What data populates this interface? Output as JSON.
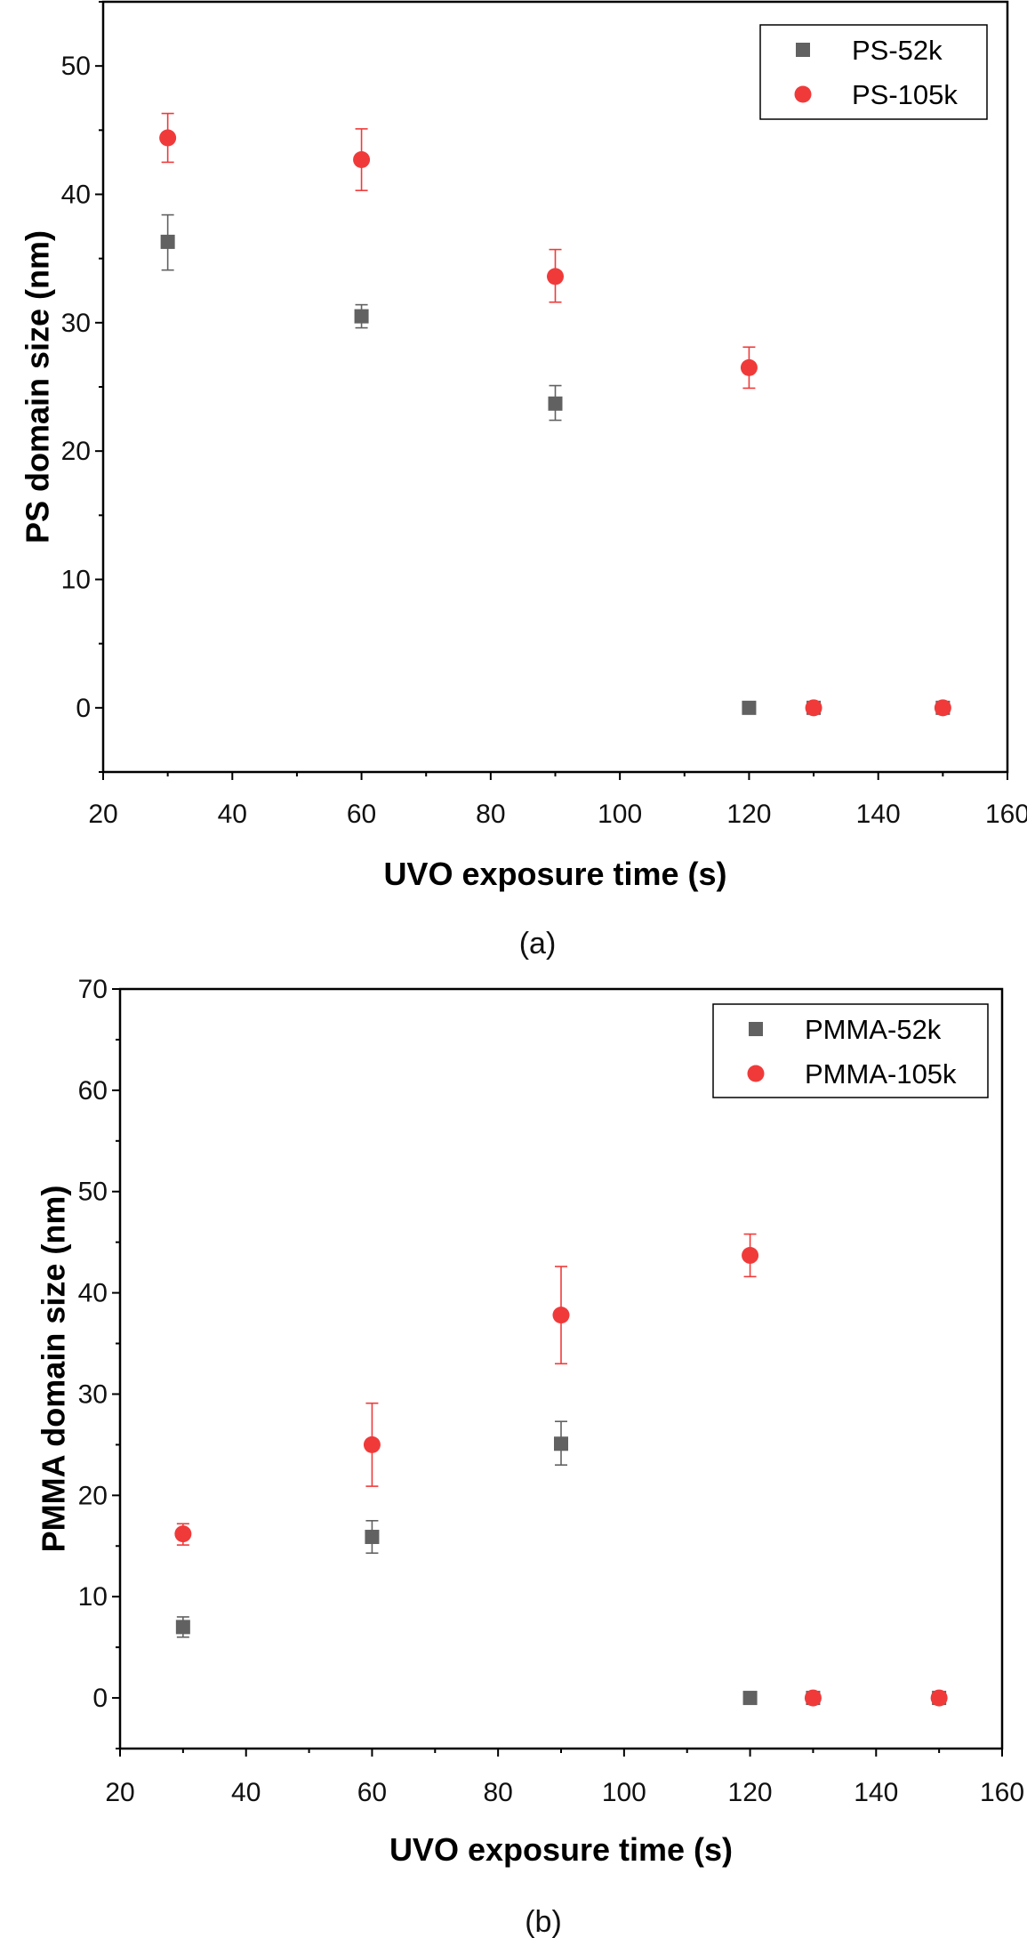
{
  "colors": {
    "series_gray": "#616161",
    "series_red": "#f03a3a",
    "axis": "#000000"
  },
  "chart_data": [
    {
      "type": "scatter",
      "caption": "(a)",
      "xlabel": "UVO exposure time (s)",
      "ylabel": "PS domain size (nm)",
      "xlim": [
        20,
        160
      ],
      "ylim": [
        -5,
        55
      ],
      "xticks": [
        20,
        40,
        60,
        80,
        100,
        120,
        140,
        160
      ],
      "yticks": [
        0,
        10,
        20,
        30,
        40,
        50
      ],
      "grid": false,
      "legend_position": "top-right",
      "error_bars": true,
      "series": [
        {
          "name": "PS-52k",
          "marker": "square",
          "color": "#616161",
          "points": [
            {
              "x": 30,
              "y": 36.3,
              "err_low": 34.1,
              "err_high": 38.4
            },
            {
              "x": 60,
              "y": 30.5,
              "err_low": 29.6,
              "err_high": 31.4
            },
            {
              "x": 90,
              "y": 23.7,
              "err_low": 22.4,
              "err_high": 25.1
            },
            {
              "x": 120,
              "y": 0
            },
            {
              "x": 130,
              "y": 0
            },
            {
              "x": 150,
              "y": 0
            }
          ]
        },
        {
          "name": "PS-105k",
          "marker": "circle",
          "color": "#f03a3a",
          "points": [
            {
              "x": 30,
              "y": 44.4,
              "err_low": 42.5,
              "err_high": 46.3
            },
            {
              "x": 60,
              "y": 42.7,
              "err_low": 40.3,
              "err_high": 45.1
            },
            {
              "x": 90,
              "y": 33.6,
              "err_low": 31.6,
              "err_high": 35.7
            },
            {
              "x": 120,
              "y": 26.5,
              "err_low": 24.9,
              "err_high": 28.1
            },
            {
              "x": 130,
              "y": 0
            },
            {
              "x": 150,
              "y": 0
            }
          ]
        }
      ]
    },
    {
      "type": "scatter",
      "caption": "(b)",
      "xlabel": "UVO exposure time (s)",
      "ylabel": "PMMA domain size (nm)",
      "xlim": [
        20,
        160
      ],
      "ylim": [
        -5,
        70
      ],
      "xticks": [
        20,
        40,
        60,
        80,
        100,
        120,
        140,
        160
      ],
      "yticks": [
        0,
        10,
        20,
        30,
        40,
        50,
        60,
        70
      ],
      "grid": false,
      "legend_position": "top-right",
      "error_bars": true,
      "series": [
        {
          "name": "PMMA-52k",
          "marker": "square",
          "color": "#616161",
          "points": [
            {
              "x": 30,
              "y": 7.0,
              "err_low": 6.0,
              "err_high": 8.0
            },
            {
              "x": 60,
              "y": 15.9,
              "err_low": 14.3,
              "err_high": 17.5
            },
            {
              "x": 90,
              "y": 25.1,
              "err_low": 23.0,
              "err_high": 27.3
            },
            {
              "x": 120,
              "y": 0
            },
            {
              "x": 130,
              "y": 0
            },
            {
              "x": 150,
              "y": 0
            }
          ]
        },
        {
          "name": "PMMA-105k",
          "marker": "circle",
          "color": "#f03a3a",
          "points": [
            {
              "x": 30,
              "y": 16.2,
              "err_low": 15.1,
              "err_high": 17.2
            },
            {
              "x": 60,
              "y": 25.0,
              "err_low": 20.9,
              "err_high": 29.1
            },
            {
              "x": 90,
              "y": 37.8,
              "err_low": 33.0,
              "err_high": 42.6
            },
            {
              "x": 120,
              "y": 43.7,
              "err_low": 41.6,
              "err_high": 45.8
            },
            {
              "x": 130,
              "y": 0
            },
            {
              "x": 150,
              "y": 0
            }
          ]
        }
      ]
    }
  ]
}
